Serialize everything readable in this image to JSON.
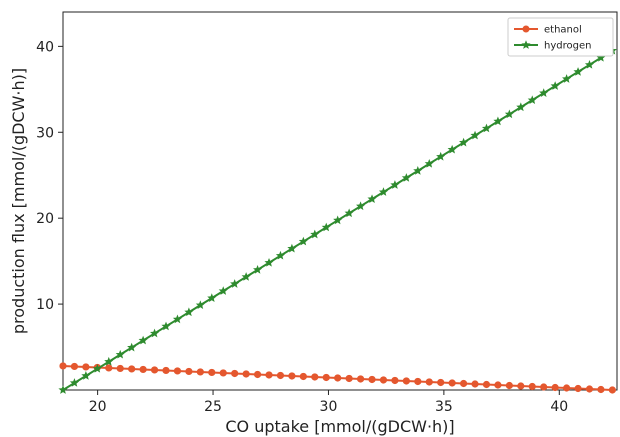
{
  "chart_data": {
    "type": "line",
    "xlabel": "CO uptake [mmol/(gDCW·h)]",
    "ylabel": "production flux [mmol/(gDCW·h)]",
    "xlim": [
      18.5,
      42.5
    ],
    "ylim": [
      0,
      44
    ],
    "x_ticks": [
      20,
      25,
      30,
      35,
      40
    ],
    "y_ticks": [
      10,
      20,
      30,
      40
    ],
    "legend_position": "top-right",
    "grid": false,
    "series": [
      {
        "name": "ethanol",
        "color": "#e4572e",
        "marker": "circle",
        "x_start": 18.5,
        "x_end": 42.3,
        "y_start": 2.8,
        "y_end": 0.0,
        "points": 49
      },
      {
        "name": "hydrogen",
        "color": "#2e8b2e",
        "marker": "star",
        "x_start": 18.5,
        "x_end": 42.3,
        "y_start": 0.0,
        "y_end": 39.5,
        "points": 49
      }
    ]
  }
}
